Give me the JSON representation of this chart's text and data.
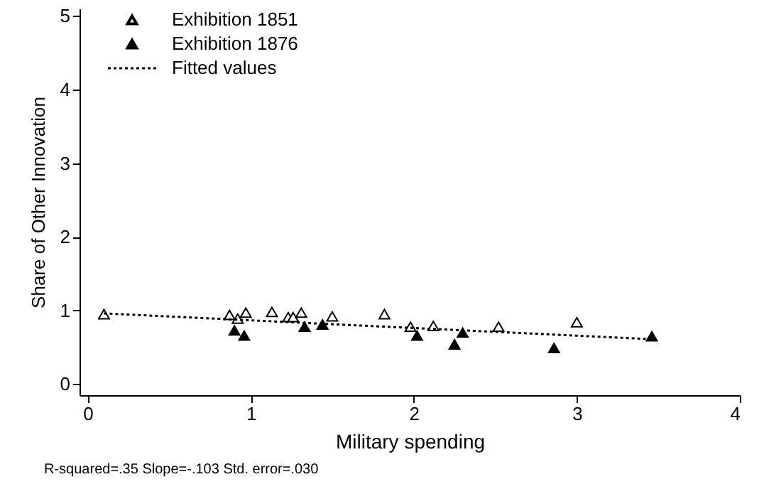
{
  "chart_data": {
    "type": "scatter",
    "xlabel": "Military spending",
    "ylabel": "Share of Other Innovation",
    "xlim": [
      -0.05,
      4.0
    ],
    "ylim": [
      -0.15,
      5.1
    ],
    "xticks": [
      0,
      1,
      2,
      3,
      4
    ],
    "yticks": [
      0,
      1,
      2,
      3,
      4,
      5
    ],
    "grid": false,
    "legend": "top left",
    "series": [
      {
        "name": "Exhibition 1851",
        "color": "#ffffff",
        "marker": "triangle",
        "x": [
          0.1,
          0.87,
          0.92,
          0.97,
          1.13,
          1.23,
          1.26,
          1.31,
          1.5,
          1.82,
          1.98,
          2.12,
          2.52,
          3.0
        ],
        "values": [
          0.95,
          0.94,
          0.89,
          0.97,
          0.98,
          0.91,
          0.91,
          0.97,
          0.92,
          0.95,
          0.78,
          0.79,
          0.78,
          0.84
        ]
      },
      {
        "name": "Exhibition 1876",
        "color": "#000000",
        "marker": "triangle",
        "x": [
          0.9,
          0.96,
          1.33,
          1.44,
          2.02,
          2.25,
          2.3,
          2.86,
          3.46
        ],
        "values": [
          0.73,
          0.66,
          0.78,
          0.81,
          0.66,
          0.54,
          0.7,
          0.49,
          0.65
        ]
      },
      {
        "name": "Fitted values",
        "type": "line",
        "line_style": "dotted",
        "color": "#000000",
        "x": [
          0.1,
          3.46
        ],
        "values": [
          0.96,
          0.61
        ],
        "marker": "none"
      }
    ],
    "annotations": [
      "R-squared=.35    Slope=-.103    Std. error=.030"
    ]
  }
}
